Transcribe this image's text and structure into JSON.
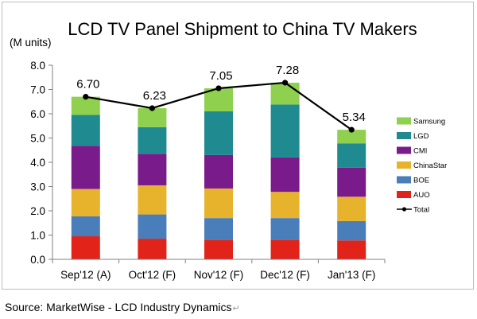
{
  "chart_data": {
    "type": "bar",
    "stacked": true,
    "title": "LCD TV Panel Shipment to China TV Makers",
    "ylabel": "(M units)",
    "xlabel": "",
    "ylim": [
      0,
      8
    ],
    "yticks": [
      "0.0",
      "1.0",
      "2.0",
      "3.0",
      "4.0",
      "5.0",
      "6.0",
      "7.0",
      "8.0"
    ],
    "grid": false,
    "legend_position": "right",
    "categories": [
      "Sep'12 (A)",
      "Oct'12 (F)",
      "Nov'12 (F)",
      "Dec'12 (F)",
      "Jan'13 (F)"
    ],
    "series": [
      {
        "name": "AUO",
        "color": "#e2231a",
        "values": [
          0.95,
          0.85,
          0.8,
          0.8,
          0.78
        ]
      },
      {
        "name": "BOE",
        "color": "#4a7eba",
        "values": [
          0.82,
          1.0,
          0.9,
          0.9,
          0.8
        ]
      },
      {
        "name": "ChinaStar",
        "color": "#e8b32c",
        "values": [
          1.13,
          1.2,
          1.22,
          1.08,
          1.0
        ]
      },
      {
        "name": "CMI",
        "color": "#7a1b8c",
        "values": [
          1.78,
          1.3,
          1.38,
          1.42,
          1.2
        ]
      },
      {
        "name": "LGD",
        "color": "#1f8a8f",
        "values": [
          1.27,
          1.1,
          1.8,
          2.18,
          1.0
        ]
      },
      {
        "name": "Samsung",
        "color": "#8fd14f",
        "values": [
          0.75,
          0.78,
          0.95,
          0.9,
          0.56
        ]
      }
    ],
    "total": {
      "name": "Total",
      "color": "#000000",
      "values": [
        6.7,
        6.23,
        7.05,
        7.28,
        5.34
      ]
    },
    "data_labels": [
      "6.70",
      "6.23",
      "7.05",
      "7.28",
      "5.34"
    ],
    "legend_order": [
      "Samsung",
      "LGD",
      "CMI",
      "ChinaStar",
      "BOE",
      "AUO",
      "Total"
    ]
  },
  "source_note": "Source: MarketWise - LCD Industry Dynamics",
  "return_mark": "↵"
}
